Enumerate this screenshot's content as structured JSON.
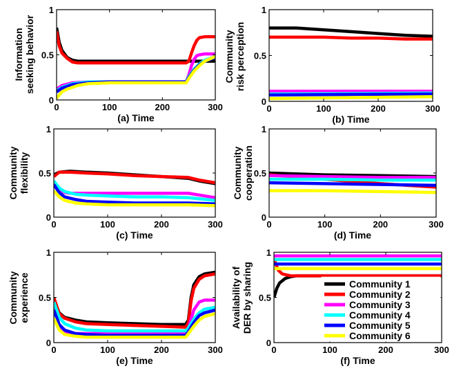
{
  "legend": {
    "placement": "bottom-right of panel (f)",
    "entries": [
      {
        "name": "Community 1",
        "color": "#000000"
      },
      {
        "name": "Community 2",
        "color": "#ff0000"
      },
      {
        "name": "Community 3",
        "color": "#ff00ff"
      },
      {
        "name": "Community 4",
        "color": "#00ffff"
      },
      {
        "name": "Community 5",
        "color": "#0000ff"
      },
      {
        "name": "Community 6",
        "color": "#ffff00"
      }
    ]
  },
  "chart_data": [
    {
      "type": "line",
      "panel": "a",
      "xlabel": "(a) Time",
      "ylabel": [
        "Information",
        "seeking behavior"
      ],
      "xlim": [
        0,
        300
      ],
      "ylim": [
        0,
        1
      ],
      "xticks": [
        "0",
        "100",
        "200",
        "300"
      ],
      "yticks": [
        "0",
        "0.5",
        "1"
      ],
      "series": [
        {
          "color": "#000000",
          "x": [
            0,
            5,
            10,
            20,
            30,
            40,
            60,
            100,
            150,
            200,
            240,
            250,
            260,
            270,
            280,
            300
          ],
          "y": [
            0.8,
            0.64,
            0.55,
            0.47,
            0.44,
            0.43,
            0.43,
            0.43,
            0.43,
            0.43,
            0.43,
            0.43,
            0.43,
            0.43,
            0.43,
            0.43
          ]
        },
        {
          "color": "#ff0000",
          "x": [
            0,
            5,
            10,
            20,
            30,
            40,
            60,
            100,
            150,
            200,
            245,
            250,
            255,
            260,
            265,
            270,
            280,
            300
          ],
          "y": [
            0.76,
            0.6,
            0.52,
            0.46,
            0.42,
            0.41,
            0.41,
            0.41,
            0.41,
            0.41,
            0.41,
            0.43,
            0.52,
            0.6,
            0.66,
            0.69,
            0.7,
            0.7
          ]
        },
        {
          "color": "#ff00ff",
          "x": [
            0,
            10,
            30,
            60,
            100,
            150,
            200,
            245,
            250,
            255,
            260,
            265,
            270,
            280,
            300
          ],
          "y": [
            0.12,
            0.16,
            0.19,
            0.2,
            0.2,
            0.2,
            0.2,
            0.2,
            0.28,
            0.38,
            0.45,
            0.49,
            0.5,
            0.51,
            0.51
          ]
        },
        {
          "color": "#00ffff",
          "x": [
            0,
            10,
            30,
            60,
            100,
            150,
            200,
            245,
            250,
            260,
            270,
            280,
            300
          ],
          "y": [
            0.1,
            0.14,
            0.18,
            0.2,
            0.2,
            0.2,
            0.2,
            0.2,
            0.26,
            0.34,
            0.4,
            0.44,
            0.48
          ]
        },
        {
          "color": "#0000ff",
          "x": [
            0,
            10,
            30,
            60,
            100,
            150,
            200,
            245,
            250,
            260,
            270,
            280,
            300
          ],
          "y": [
            0.09,
            0.13,
            0.17,
            0.19,
            0.2,
            0.2,
            0.2,
            0.2,
            0.25,
            0.33,
            0.39,
            0.43,
            0.47
          ]
        },
        {
          "color": "#ffff00",
          "x": [
            0,
            10,
            20,
            40,
            60,
            100,
            150,
            200,
            245,
            250,
            260,
            270,
            280,
            300
          ],
          "y": [
            0.02,
            0.09,
            0.12,
            0.16,
            0.18,
            0.19,
            0.19,
            0.19,
            0.19,
            0.24,
            0.32,
            0.38,
            0.43,
            0.48
          ]
        }
      ]
    },
    {
      "type": "line",
      "panel": "b",
      "xlabel": "(b) Time",
      "ylabel": [
        "Community",
        "risk perception"
      ],
      "xlim": [
        0,
        300
      ],
      "ylim": [
        0,
        1
      ],
      "xticks": [
        "0",
        "100",
        "200",
        "300"
      ],
      "yticks": [
        "0",
        "0.5",
        "1"
      ],
      "series": [
        {
          "color": "#000000",
          "x": [
            0,
            50,
            100,
            150,
            200,
            250,
            300
          ],
          "y": [
            0.8,
            0.8,
            0.78,
            0.76,
            0.74,
            0.72,
            0.71
          ]
        },
        {
          "color": "#ff0000",
          "x": [
            0,
            50,
            100,
            150,
            200,
            250,
            300
          ],
          "y": [
            0.7,
            0.7,
            0.7,
            0.69,
            0.69,
            0.68,
            0.68
          ]
        },
        {
          "color": "#ff00ff",
          "x": [
            0,
            300
          ],
          "y": [
            0.11,
            0.11
          ]
        },
        {
          "color": "#00ffff",
          "x": [
            0,
            300
          ],
          "y": [
            0.08,
            0.09
          ]
        },
        {
          "color": "#0000ff",
          "x": [
            0,
            300
          ],
          "y": [
            0.07,
            0.08
          ]
        },
        {
          "color": "#ffff00",
          "x": [
            0,
            300
          ],
          "y": [
            0.03,
            0.05
          ]
        }
      ]
    },
    {
      "type": "line",
      "panel": "c",
      "xlabel": "(c) Time",
      "ylabel": [
        "Community",
        "flexibility"
      ],
      "xlim": [
        0,
        300
      ],
      "ylim": [
        0,
        1
      ],
      "xticks": [
        "0",
        "100",
        "200",
        "300"
      ],
      "yticks": [
        "0",
        "0.5",
        "1"
      ],
      "series": [
        {
          "color": "#000000",
          "x": [
            0,
            10,
            30,
            60,
            100,
            150,
            200,
            250,
            270,
            300
          ],
          "y": [
            0.48,
            0.51,
            0.52,
            0.51,
            0.5,
            0.48,
            0.46,
            0.44,
            0.41,
            0.38
          ]
        },
        {
          "color": "#ff0000",
          "x": [
            0,
            10,
            30,
            60,
            100,
            150,
            200,
            250,
            270,
            300
          ],
          "y": [
            0.46,
            0.51,
            0.51,
            0.5,
            0.49,
            0.47,
            0.46,
            0.45,
            0.42,
            0.39
          ]
        },
        {
          "color": "#ff00ff",
          "x": [
            0,
            10,
            20,
            30,
            60,
            100,
            150,
            200,
            250,
            300
          ],
          "y": [
            0.4,
            0.32,
            0.28,
            0.27,
            0.27,
            0.27,
            0.27,
            0.27,
            0.27,
            0.22
          ]
        },
        {
          "color": "#00ffff",
          "x": [
            0,
            10,
            20,
            40,
            60,
            100,
            150,
            200,
            250,
            300
          ],
          "y": [
            0.41,
            0.33,
            0.29,
            0.26,
            0.25,
            0.24,
            0.23,
            0.23,
            0.22,
            0.19
          ]
        },
        {
          "color": "#0000ff",
          "x": [
            0,
            10,
            20,
            40,
            60,
            100,
            150,
            200,
            250,
            300
          ],
          "y": [
            0.37,
            0.28,
            0.23,
            0.2,
            0.18,
            0.17,
            0.16,
            0.16,
            0.16,
            0.15
          ]
        },
        {
          "color": "#ffff00",
          "x": [
            0,
            10,
            20,
            40,
            60,
            100,
            150,
            200,
            250,
            300
          ],
          "y": [
            0.3,
            0.23,
            0.19,
            0.16,
            0.15,
            0.14,
            0.14,
            0.14,
            0.14,
            0.13
          ]
        }
      ]
    },
    {
      "type": "line",
      "panel": "d",
      "xlabel": "(d) Time",
      "ylabel": [
        "Community",
        "cooperation"
      ],
      "xlim": [
        0,
        300
      ],
      "ylim": [
        0,
        1
      ],
      "xticks": [
        "0",
        "100",
        "200",
        "300"
      ],
      "yticks": [
        "0",
        "0.5",
        "1"
      ],
      "series": [
        {
          "color": "#000000",
          "x": [
            0,
            100,
            200,
            300
          ],
          "y": [
            0.5,
            0.48,
            0.47,
            0.46
          ]
        },
        {
          "color": "#ff0000",
          "x": [
            0,
            100,
            200,
            300
          ],
          "y": [
            0.48,
            0.43,
            0.38,
            0.34
          ]
        },
        {
          "color": "#ff00ff",
          "x": [
            0,
            100,
            200,
            300
          ],
          "y": [
            0.47,
            0.46,
            0.45,
            0.45
          ]
        },
        {
          "color": "#00ffff",
          "x": [
            0,
            100,
            200,
            300
          ],
          "y": [
            0.43,
            0.43,
            0.42,
            0.42
          ]
        },
        {
          "color": "#0000ff",
          "x": [
            0,
            100,
            200,
            300
          ],
          "y": [
            0.39,
            0.38,
            0.37,
            0.36
          ]
        },
        {
          "color": "#ffff00",
          "x": [
            0,
            100,
            200,
            300
          ],
          "y": [
            0.3,
            0.3,
            0.29,
            0.28
          ]
        }
      ]
    },
    {
      "type": "line",
      "panel": "e",
      "xlabel": "(e) Time",
      "ylabel": [
        "Community",
        "experience"
      ],
      "xlim": [
        0,
        300
      ],
      "ylim": [
        0,
        1
      ],
      "xticks": [
        "0",
        "100",
        "200",
        "300"
      ],
      "yticks": [
        "0",
        "0.5",
        "1"
      ],
      "series": [
        {
          "color": "#000000",
          "x": [
            0,
            10,
            20,
            40,
            60,
            100,
            150,
            200,
            245,
            250,
            255,
            260,
            270,
            280,
            300
          ],
          "y": [
            0.48,
            0.33,
            0.28,
            0.25,
            0.23,
            0.22,
            0.21,
            0.2,
            0.2,
            0.25,
            0.5,
            0.64,
            0.73,
            0.76,
            0.78
          ]
        },
        {
          "color": "#ff0000",
          "x": [
            0,
            10,
            20,
            40,
            60,
            100,
            150,
            200,
            245,
            250,
            255,
            260,
            270,
            280,
            300
          ],
          "y": [
            0.5,
            0.32,
            0.27,
            0.23,
            0.21,
            0.2,
            0.19,
            0.18,
            0.17,
            0.22,
            0.46,
            0.6,
            0.7,
            0.74,
            0.76
          ]
        },
        {
          "color": "#ff00ff",
          "x": [
            0,
            10,
            15,
            20,
            30,
            60,
            100,
            150,
            200,
            245,
            250,
            260,
            270,
            280,
            300
          ],
          "y": [
            0.44,
            0.18,
            0.12,
            0.1,
            0.1,
            0.1,
            0.1,
            0.1,
            0.1,
            0.1,
            0.16,
            0.36,
            0.45,
            0.47,
            0.47
          ]
        },
        {
          "color": "#00ffff",
          "x": [
            0,
            10,
            20,
            40,
            60,
            100,
            150,
            200,
            245,
            250,
            260,
            270,
            280,
            300
          ],
          "y": [
            0.45,
            0.28,
            0.21,
            0.16,
            0.14,
            0.13,
            0.13,
            0.13,
            0.13,
            0.16,
            0.26,
            0.33,
            0.37,
            0.39
          ]
        },
        {
          "color": "#0000ff",
          "x": [
            0,
            10,
            20,
            40,
            60,
            100,
            150,
            200,
            245,
            250,
            260,
            270,
            280,
            300
          ],
          "y": [
            0.36,
            0.2,
            0.14,
            0.1,
            0.09,
            0.08,
            0.08,
            0.08,
            0.08,
            0.12,
            0.22,
            0.3,
            0.33,
            0.36
          ]
        },
        {
          "color": "#ffff00",
          "x": [
            0,
            10,
            20,
            40,
            60,
            100,
            150,
            200,
            245,
            250,
            260,
            270,
            280,
            300
          ],
          "y": [
            0.27,
            0.14,
            0.09,
            0.07,
            0.06,
            0.06,
            0.06,
            0.06,
            0.06,
            0.1,
            0.18,
            0.25,
            0.29,
            0.32
          ]
        }
      ]
    },
    {
      "type": "line",
      "panel": "f",
      "xlabel": "(f) Time",
      "ylabel": [
        "Availability of",
        "DER by sharing"
      ],
      "xlim": [
        0,
        300
      ],
      "ylim": [
        0,
        1
      ],
      "xticks": [
        "0",
        "100",
        "200",
        "300"
      ],
      "yticks": [
        "0",
        "0.5",
        "1"
      ],
      "series": [
        {
          "color": "#000000",
          "x": [
            0,
            5,
            10,
            20,
            30,
            40,
            60,
            100,
            200,
            300
          ],
          "y": [
            0.5,
            0.6,
            0.66,
            0.71,
            0.73,
            0.74,
            0.74,
            0.74,
            0.74,
            0.74
          ]
        },
        {
          "color": "#ff0000",
          "x": [
            0,
            4,
            8,
            15,
            30,
            60,
            100,
            200,
            300
          ],
          "y": [
            0.93,
            0.86,
            0.8,
            0.76,
            0.74,
            0.74,
            0.74,
            0.74,
            0.74
          ]
        },
        {
          "color": "#ff00ff",
          "x": [
            0,
            300
          ],
          "y": [
            0.96,
            0.96
          ]
        },
        {
          "color": "#00ffff",
          "x": [
            0,
            300
          ],
          "y": [
            0.92,
            0.92
          ]
        },
        {
          "color": "#0000ff",
          "x": [
            0,
            300
          ],
          "y": [
            0.87,
            0.87
          ]
        },
        {
          "color": "#ffff00",
          "x": [
            0,
            300
          ],
          "y": [
            0.82,
            0.82
          ]
        }
      ]
    }
  ]
}
